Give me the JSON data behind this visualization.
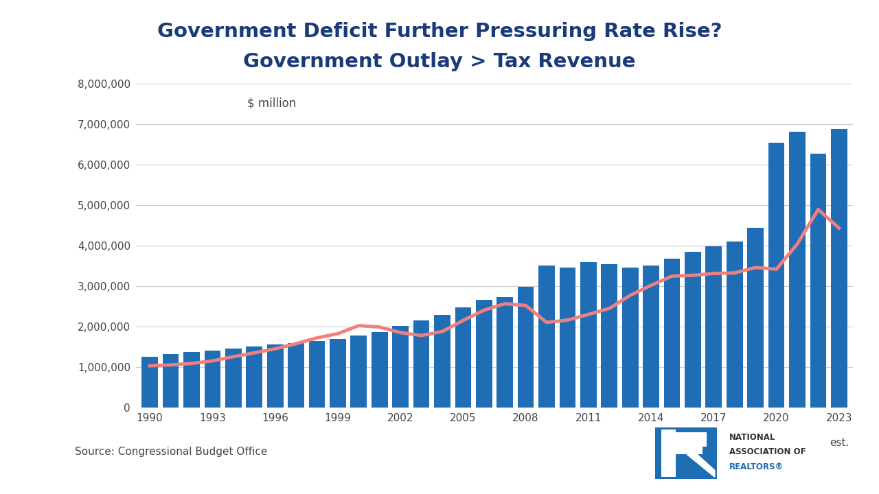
{
  "title_line1": "Government Deficit Further Pressuring Rate Rise?",
  "title_line2": "Government Outlay > Tax Revenue",
  "ylabel_annotation": "$ million",
  "source": "Source: Congressional Budget Office",
  "years": [
    1990,
    1991,
    1992,
    1993,
    1994,
    1995,
    1996,
    1997,
    1998,
    1999,
    2000,
    2001,
    2002,
    2003,
    2004,
    2005,
    2006,
    2007,
    2008,
    2009,
    2010,
    2011,
    2012,
    2013,
    2014,
    2015,
    2016,
    2017,
    2018,
    2019,
    2020,
    2021,
    2022,
    2023
  ],
  "outlays": [
    1253000,
    1324000,
    1382000,
    1410000,
    1461000,
    1516000,
    1561000,
    1601000,
    1653000,
    1702000,
    1789000,
    1863000,
    2011000,
    2160000,
    2293000,
    2472000,
    2655000,
    2729000,
    2983000,
    3518000,
    3457000,
    3603000,
    3537000,
    3455000,
    3506000,
    3688000,
    3854000,
    3982000,
    4108000,
    4447000,
    6550000,
    6822000,
    6272000,
    6886000
  ],
  "tax_revenues": [
    1032000,
    1055000,
    1091000,
    1154000,
    1258000,
    1352000,
    1453000,
    1579000,
    1722000,
    1827000,
    2025000,
    1991000,
    1853000,
    1782000,
    1880000,
    2154000,
    2407000,
    2568000,
    2524000,
    2105000,
    2163000,
    2304000,
    2450000,
    2775000,
    3022000,
    3250000,
    3269000,
    3316000,
    3329000,
    3462000,
    3421000,
    4046000,
    4896000,
    4438000
  ],
  "bar_color": "#1F6DB5",
  "line_color": "#F08080",
  "title_color": "#1a3a7a",
  "background_color": "#ffffff",
  "ylim": [
    0,
    8000000
  ],
  "yticks": [
    0,
    1000000,
    2000000,
    3000000,
    4000000,
    5000000,
    6000000,
    7000000,
    8000000
  ],
  "xtick_years": [
    1990,
    1993,
    1996,
    1999,
    2002,
    2005,
    2008,
    2011,
    2014,
    2017,
    2020,
    2023
  ]
}
